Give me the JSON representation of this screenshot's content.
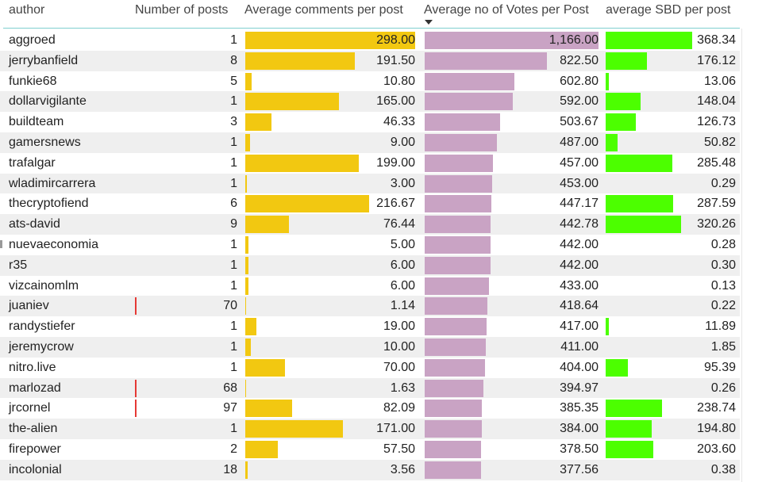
{
  "table": {
    "headers": {
      "author": "author",
      "posts": "Number of posts",
      "comments": "Average comments per post",
      "votes": "Average no of Votes per Post",
      "sbd": "average SBD per post"
    },
    "max": {
      "posts": 97,
      "comments": 298.0,
      "votes": 1166.0,
      "sbd": 368.34
    },
    "colors": {
      "comments": "#f2c811",
      "votes": "#c9a3c4",
      "sbd": "#4cff00",
      "posts": "#e53935"
    },
    "rows": [
      {
        "author": "aggroed",
        "posts": "1",
        "comments": "298.00",
        "votes": "1,166.00",
        "sbd": "368.34",
        "p": 1,
        "c": 298.0,
        "v": 1166.0,
        "s": 368.34
      },
      {
        "author": "jerrybanfield",
        "posts": "8",
        "comments": "191.50",
        "votes": "822.50",
        "sbd": "176.12",
        "p": 8,
        "c": 191.5,
        "v": 822.5,
        "s": 176.12
      },
      {
        "author": "funkie68",
        "posts": "5",
        "comments": "10.80",
        "votes": "602.80",
        "sbd": "13.06",
        "p": 5,
        "c": 10.8,
        "v": 602.8,
        "s": 13.06
      },
      {
        "author": "dollarvigilante",
        "posts": "1",
        "comments": "165.00",
        "votes": "592.00",
        "sbd": "148.04",
        "p": 1,
        "c": 165.0,
        "v": 592.0,
        "s": 148.04
      },
      {
        "author": "buildteam",
        "posts": "3",
        "comments": "46.33",
        "votes": "503.67",
        "sbd": "126.73",
        "p": 3,
        "c": 46.33,
        "v": 503.67,
        "s": 126.73
      },
      {
        "author": "gamersnews",
        "posts": "1",
        "comments": "9.00",
        "votes": "487.00",
        "sbd": "50.82",
        "p": 1,
        "c": 9.0,
        "v": 487.0,
        "s": 50.82
      },
      {
        "author": "trafalgar",
        "posts": "1",
        "comments": "199.00",
        "votes": "457.00",
        "sbd": "285.48",
        "p": 1,
        "c": 199.0,
        "v": 457.0,
        "s": 285.48
      },
      {
        "author": "wladimircarrera",
        "posts": "1",
        "comments": "3.00",
        "votes": "453.00",
        "sbd": "0.29",
        "p": 1,
        "c": 3.0,
        "v": 453.0,
        "s": 0.29
      },
      {
        "author": "thecryptofiend",
        "posts": "6",
        "comments": "216.67",
        "votes": "447.17",
        "sbd": "287.59",
        "p": 6,
        "c": 216.67,
        "v": 447.17,
        "s": 287.59
      },
      {
        "author": "ats-david",
        "posts": "9",
        "comments": "76.44",
        "votes": "442.78",
        "sbd": "320.26",
        "p": 9,
        "c": 76.44,
        "v": 442.78,
        "s": 320.26
      },
      {
        "author": "nuevaeconomia",
        "posts": "1",
        "comments": "5.00",
        "votes": "442.00",
        "sbd": "0.28",
        "p": 1,
        "c": 5.0,
        "v": 442.0,
        "s": 0.28
      },
      {
        "author": "r35",
        "posts": "1",
        "comments": "6.00",
        "votes": "442.00",
        "sbd": "0.30",
        "p": 1,
        "c": 6.0,
        "v": 442.0,
        "s": 0.3
      },
      {
        "author": "vizcainomlm",
        "posts": "1",
        "comments": "6.00",
        "votes": "433.00",
        "sbd": "0.13",
        "p": 1,
        "c": 6.0,
        "v": 433.0,
        "s": 0.13
      },
      {
        "author": "juaniev",
        "posts": "70",
        "comments": "1.14",
        "votes": "418.64",
        "sbd": "0.22",
        "p": 70,
        "c": 1.14,
        "v": 418.64,
        "s": 0.22
      },
      {
        "author": "randystiefer",
        "posts": "1",
        "comments": "19.00",
        "votes": "417.00",
        "sbd": "11.89",
        "p": 1,
        "c": 19.0,
        "v": 417.0,
        "s": 11.89
      },
      {
        "author": "jeremycrow",
        "posts": "1",
        "comments": "10.00",
        "votes": "411.00",
        "sbd": "1.85",
        "p": 1,
        "c": 10.0,
        "v": 411.0,
        "s": 1.85
      },
      {
        "author": "nitro.live",
        "posts": "1",
        "comments": "70.00",
        "votes": "404.00",
        "sbd": "95.39",
        "p": 1,
        "c": 70.0,
        "v": 404.0,
        "s": 95.39
      },
      {
        "author": "marlozad",
        "posts": "68",
        "comments": "1.63",
        "votes": "394.97",
        "sbd": "0.26",
        "p": 68,
        "c": 1.63,
        "v": 394.97,
        "s": 0.26
      },
      {
        "author": "jrcornel",
        "posts": "97",
        "comments": "82.09",
        "votes": "385.35",
        "sbd": "238.74",
        "p": 97,
        "c": 82.09,
        "v": 385.35,
        "s": 238.74
      },
      {
        "author": "the-alien",
        "posts": "1",
        "comments": "171.00",
        "votes": "384.00",
        "sbd": "194.80",
        "p": 1,
        "c": 171.0,
        "v": 384.0,
        "s": 194.8
      },
      {
        "author": "firepower",
        "posts": "2",
        "comments": "57.50",
        "votes": "378.50",
        "sbd": "203.60",
        "p": 2,
        "c": 57.5,
        "v": 378.5,
        "s": 203.6
      },
      {
        "author": "incolonial",
        "posts": "18",
        "comments": "3.56",
        "votes": "377.56",
        "sbd": "0.38",
        "p": 18,
        "c": 3.56,
        "v": 377.56,
        "s": 0.38
      }
    ]
  }
}
